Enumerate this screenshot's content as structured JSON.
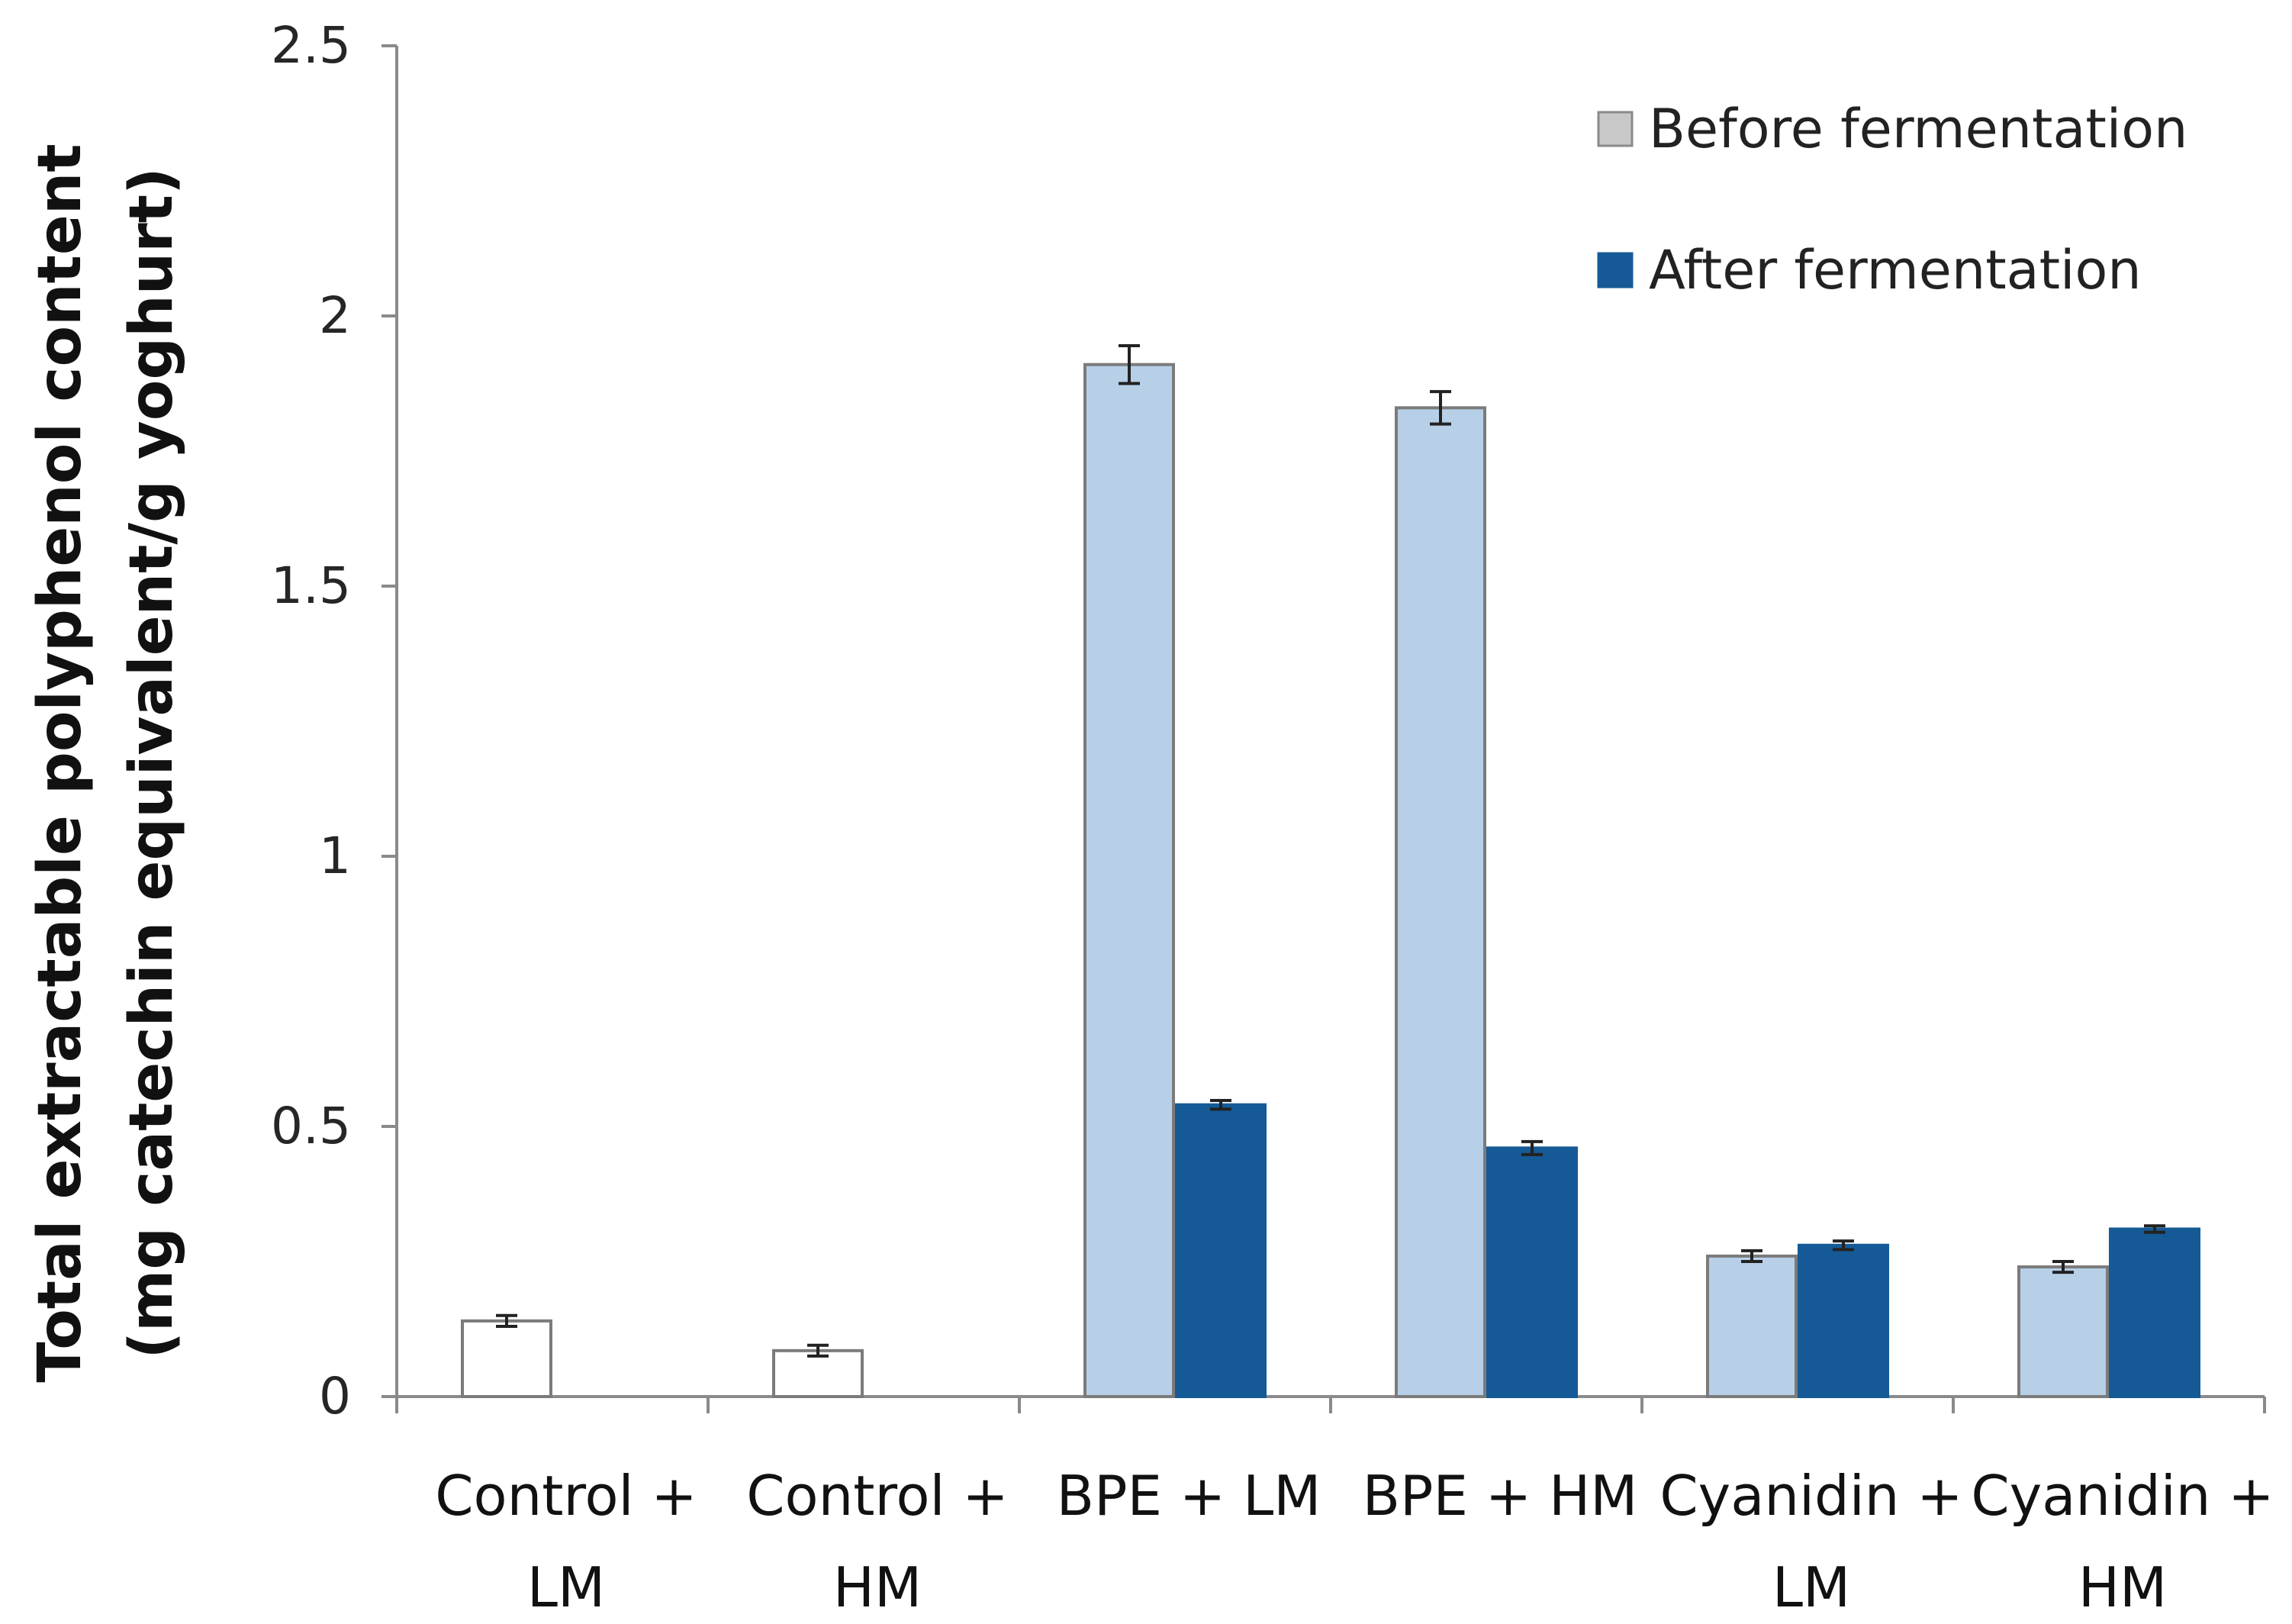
{
  "chart_data": {
    "type": "bar",
    "title": "",
    "xlabel": "",
    "ylabel": "Total extractable polyphenol content",
    "ylabel_sub": "(mg catechin equivalent/g yoghurt)",
    "ylim": [
      0,
      2.5
    ],
    "yticks": [
      {
        "value": 0,
        "label": "0"
      },
      {
        "value": 0.5,
        "label": "0.5"
      },
      {
        "value": 1,
        "label": "1"
      },
      {
        "value": 1.5,
        "label": "1.5"
      },
      {
        "value": 2,
        "label": "2"
      },
      {
        "value": 2.5,
        "label": "2.5"
      }
    ],
    "categories": [
      [
        "Control +",
        "LM"
      ],
      [
        "Control +",
        "HM"
      ],
      [
        "BPE + LM"
      ],
      [
        "BPE + HM"
      ],
      [
        "Cyanidin +",
        "LM"
      ],
      [
        "Cyanidin +",
        "HM"
      ]
    ],
    "series": [
      {
        "name": "Before fermentation",
        "legend_swatch": "#c8c8c8",
        "values": [
          0.14,
          0.085,
          1.91,
          1.83,
          0.26,
          0.24
        ],
        "errors": [
          0.01,
          0.01,
          0.035,
          0.03,
          0.01,
          0.01
        ],
        "fills": [
          "#ffffff",
          "#ffffff",
          "#b7d0e8",
          "#b7d0e8",
          "#b7d0e8",
          "#b7d0e8"
        ],
        "stroke": "#7b7b7b"
      },
      {
        "name": "After fermentation",
        "legend_swatch": "#155a96",
        "values": [
          null,
          null,
          0.54,
          0.46,
          0.28,
          0.31
        ],
        "errors": [
          null,
          null,
          0.008,
          0.012,
          0.008,
          0.006
        ],
        "fills": [
          "#155a96",
          "#155a96",
          "#155a96",
          "#155a96",
          "#155a96",
          "#155a96"
        ],
        "stroke": "#155a96"
      }
    ],
    "legend_position": "top-right",
    "grid": false
  }
}
